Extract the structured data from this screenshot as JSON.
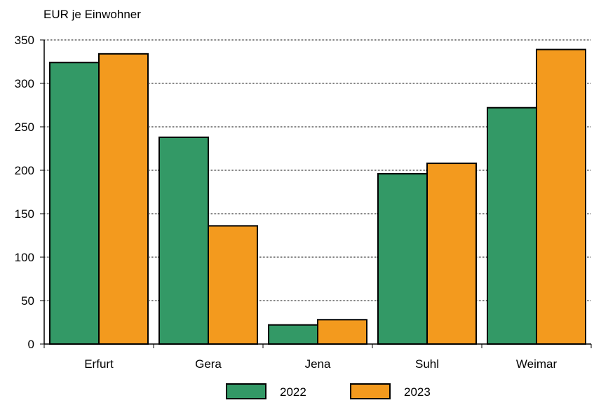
{
  "chart_data": {
    "type": "bar",
    "title": "",
    "ylabel": "EUR je Einwohner",
    "xlabel": "",
    "categories": [
      "Erfurt",
      "Gera",
      "Jena",
      "Suhl",
      "Weimar"
    ],
    "series": [
      {
        "name": "2022",
        "color": "#339966",
        "values": [
          324,
          238,
          22,
          196,
          272
        ]
      },
      {
        "name": "2023",
        "color": "#F39A1E",
        "values": [
          334,
          136,
          28,
          208,
          339
        ]
      }
    ],
    "ylim": [
      0,
      350
    ],
    "yticks": [
      "0",
      "50",
      "100",
      "150",
      "200",
      "250",
      "300",
      "350"
    ],
    "grid": true,
    "legend_position": "bottom"
  }
}
